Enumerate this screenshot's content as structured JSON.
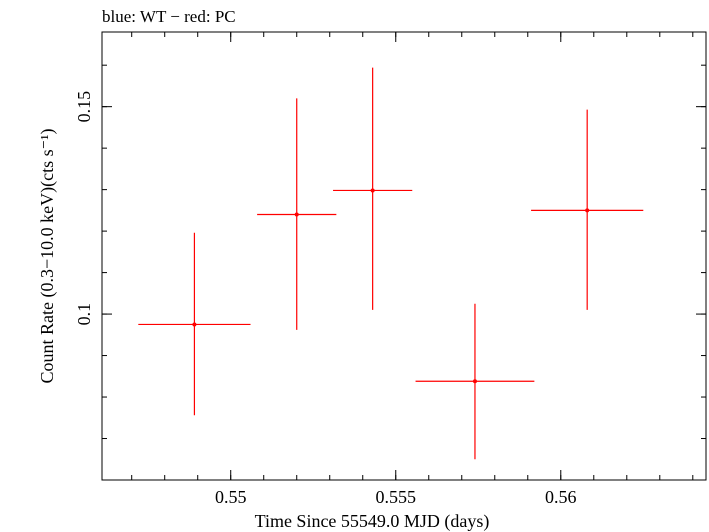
{
  "chart_data": {
    "type": "scatter",
    "title": "blue: WT − red: PC",
    "xlabel": "Time Since 55549.0 MJD (days)",
    "ylabel": "Count Rate (0.3−10.0 keV)(cts s⁻¹)",
    "xlim": [
      0.5461,
      0.5644
    ],
    "ylim": [
      0.06,
      0.168
    ],
    "xticks": [
      {
        "value": 0.55,
        "label": "0.55"
      },
      {
        "value": 0.555,
        "label": "0.555"
      },
      {
        "value": 0.56,
        "label": "0.56"
      }
    ],
    "yticks": [
      {
        "value": 0.1,
        "label": "0.1"
      },
      {
        "value": 0.15,
        "label": "0.15"
      }
    ],
    "x_minor_step": 0.001,
    "y_minor_step": 0.01,
    "series": [
      {
        "name": "PC",
        "color": "#ff0000",
        "points": [
          {
            "x": 0.5489,
            "y": 0.0975,
            "xerr": 0.0017,
            "ylo": 0.0756,
            "yhi": 0.1196
          },
          {
            "x": 0.552,
            "y": 0.124,
            "xerr": 0.0012,
            "ylo": 0.0962,
            "yhi": 0.152
          },
          {
            "x": 0.5543,
            "y": 0.1298,
            "xerr": 0.0012,
            "ylo": 0.101,
            "yhi": 0.1594
          },
          {
            "x": 0.5574,
            "y": 0.0838,
            "xerr": 0.0018,
            "ylo": 0.065,
            "yhi": 0.1025
          },
          {
            "x": 0.5608,
            "y": 0.125,
            "xerr": 0.0017,
            "ylo": 0.101,
            "yhi": 0.1493
          }
        ]
      },
      {
        "name": "WT",
        "color": "#0000ff",
        "points": []
      }
    ]
  }
}
